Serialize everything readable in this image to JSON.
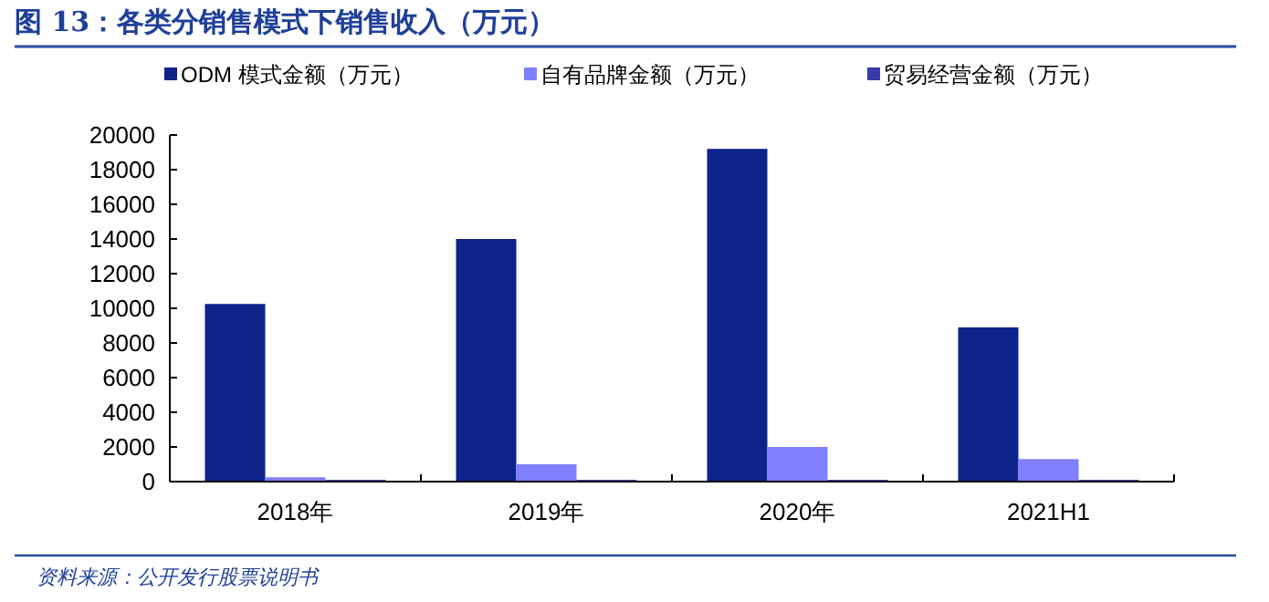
{
  "chart_data": {
    "type": "bar",
    "title": "图 13：各类分销售模式下销售收入（万元）",
    "categories": [
      "2018年",
      "2019年",
      "2020年",
      "2021H1"
    ],
    "series": [
      {
        "name": "ODM 模式金额（万元）",
        "color": "#0d238a",
        "values": [
          10250,
          14000,
          19200,
          8900
        ]
      },
      {
        "name": "自有品牌金额（万元）",
        "color": "#7f7fff",
        "values": [
          250,
          1000,
          2000,
          1300
        ]
      },
      {
        "name": "贸易经营金额（万元）",
        "color": "#3a3aa8",
        "values": [
          100,
          100,
          100,
          100
        ]
      }
    ],
    "ylim": [
      0,
      20000
    ],
    "yticks": [
      0,
      2000,
      4000,
      6000,
      8000,
      10000,
      12000,
      14000,
      16000,
      18000,
      20000
    ],
    "legend": "top",
    "grid": false,
    "annotations": [
      "资料来源：公开发行股票说明书"
    ]
  }
}
